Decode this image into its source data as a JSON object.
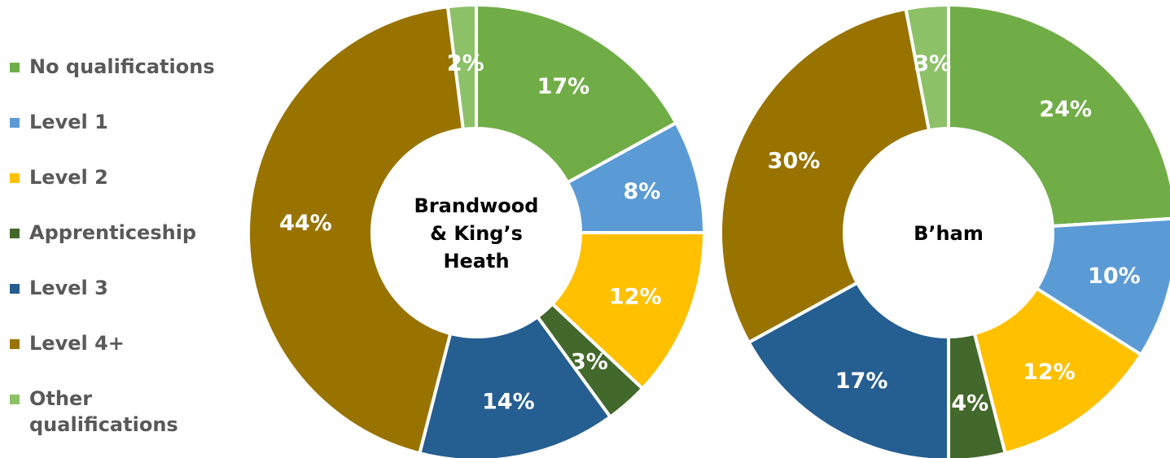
{
  "chart_data": [
    {
      "type": "donut",
      "center_title": [
        "Brandwood",
        "& King’s",
        "Heath"
      ],
      "categories": [
        "No qualifications",
        "Level 1",
        "Level 2",
        "Apprenticeship",
        "Level 3",
        "Level 4+",
        "Other qualifications"
      ],
      "values": [
        17,
        8,
        12,
        3,
        14,
        44,
        2
      ],
      "labels": [
        "17%",
        "8%",
        "12%",
        "3%",
        "14%",
        "44%",
        "2%"
      ]
    },
    {
      "type": "donut",
      "center_title": [
        "B’ham"
      ],
      "categories": [
        "No qualifications",
        "Level 1",
        "Level 2",
        "Apprenticeship",
        "Level 3",
        "Level 4+",
        "Other qualifications"
      ],
      "values": [
        24,
        10,
        12,
        4,
        17,
        30,
        3
      ],
      "labels": [
        "24%",
        "10%",
        "12%",
        "4%",
        "17%",
        "30%",
        "3%"
      ]
    }
  ],
  "legend": {
    "placement": "left",
    "items": [
      {
        "label": "No qualifications",
        "color": "#70AD47"
      },
      {
        "label": "Level 1",
        "color": "#5B9BD5"
      },
      {
        "label": "Level 2",
        "color": "#FFC000"
      },
      {
        "label": "Apprenticeship",
        "color": "#43682B"
      },
      {
        "label": "Level 3",
        "color": "#255E91"
      },
      {
        "label": "Level 4+",
        "color": "#997300"
      },
      {
        "label": "Other qualifications",
        "color": "#8CC168"
      }
    ]
  }
}
